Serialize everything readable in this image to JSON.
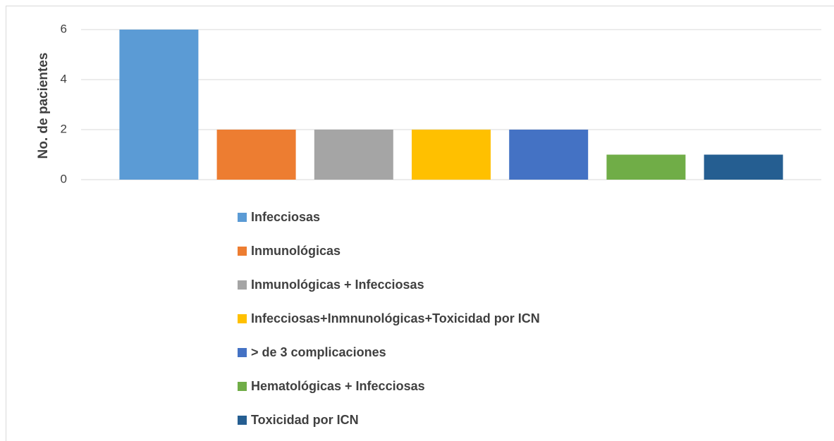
{
  "chart_data": {
    "type": "bar",
    "y_label": "No. de pacientes",
    "categories": [
      null
    ],
    "series": [
      {
        "name": "Infecciosas",
        "color": "#5b9bd5",
        "values": [
          6
        ]
      },
      {
        "name": "Inmunológicas",
        "color": "#ed7d31",
        "values": [
          2
        ]
      },
      {
        "name": "Inmunológicas + Infecciosas",
        "color": "#a5a5a5",
        "values": [
          2
        ]
      },
      {
        "name": "Infecciosas+Inmnunológicas+Toxicidad por ICN",
        "color": "#ffc000",
        "values": [
          2
        ]
      },
      {
        "name": "> de 3 complicaciones",
        "color": "#4472c4",
        "values": [
          2
        ]
      },
      {
        "name": "Hematológicas + Infecciosas",
        "color": "#70ad47",
        "values": [
          1
        ]
      },
      {
        "name": "Toxicidad por ICN",
        "color": "#255e91",
        "values": [
          1
        ]
      }
    ],
    "ylim": [
      0,
      6
    ],
    "yticks": [
      0,
      2,
      4,
      6
    ],
    "grid": true,
    "legend": "bottom"
  }
}
